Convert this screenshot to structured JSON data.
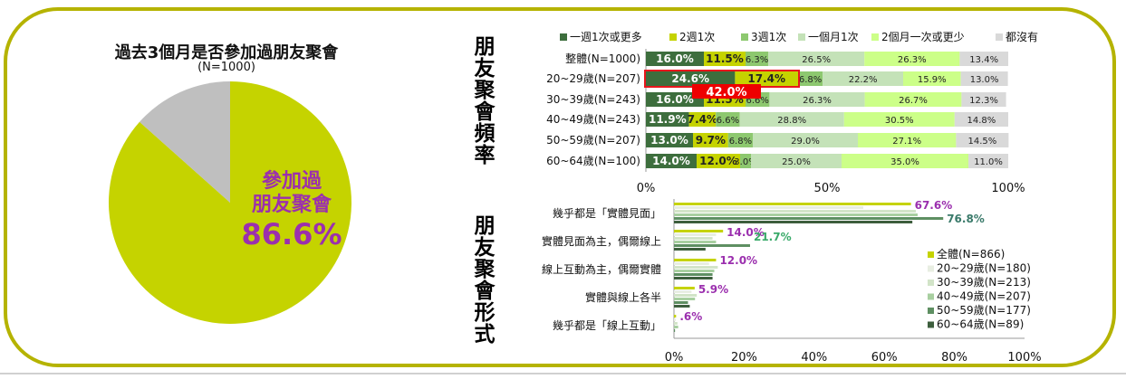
{
  "pie": {
    "title": "過去3個月是否參加過朋友聚會",
    "subtitle": "(N=1000)",
    "label_line1": "參加過",
    "label_line2": "朋友聚會",
    "label_value": "86.6%",
    "colors": {
      "yes": "#c5d300",
      "no": "#bfbfbf"
    }
  },
  "freq_title": "朋友聚會頻率",
  "form_title": "朋友聚會形式",
  "annotation": "42.0%",
  "chart_data": [
    {
      "type": "pie",
      "slices": [
        {
          "name": "參加過朋友聚會",
          "value": 86.6
        },
        {
          "name": "",
          "value": 13.4
        }
      ]
    },
    {
      "type": "bar",
      "orientation": "horizontal",
      "stacked": true,
      "legend": [
        "一週1次或更多",
        "2週1次",
        "3週1次",
        "一個月1次",
        "2個月一次或更少",
        "都沒有"
      ],
      "colors": [
        "#3d6e3d",
        "#c5d300",
        "#8dc86f",
        "#c4e2b8",
        "#ccff88",
        "#d9d9d9"
      ],
      "categories": [
        "整體(N=1000)",
        "20~29歲(N=207)",
        "30~39歲(N=243)",
        "40~49歲(N=243)",
        "50~59歲(N=207)",
        "60~64歲(N=100)"
      ],
      "series": [
        {
          "name": "一週1次或更多",
          "values": [
            16.0,
            24.6,
            16.0,
            11.9,
            13.0,
            14.0
          ]
        },
        {
          "name": "2週1次",
          "values": [
            11.5,
            17.4,
            11.5,
            7.4,
            9.7,
            12.0
          ]
        },
        {
          "name": "3週1次",
          "values": [
            6.3,
            6.8,
            6.6,
            6.6,
            6.8,
            3.0
          ]
        },
        {
          "name": "一個月1次",
          "values": [
            26.5,
            22.2,
            26.3,
            28.8,
            29.0,
            25.0
          ]
        },
        {
          "name": "2個月一次或更少",
          "values": [
            26.3,
            15.9,
            26.7,
            30.5,
            27.1,
            35.0
          ]
        },
        {
          "name": "都沒有",
          "values": [
            13.4,
            13.0,
            12.3,
            14.8,
            14.5,
            11.0
          ]
        }
      ],
      "label_text": [
        [
          "16.0%",
          "11.5%",
          "6.3%",
          "26.5%",
          "26.3%",
          "13.4%"
        ],
        [
          "24.6%",
          "17.4%",
          "6.8%",
          "22.2%",
          "15.9%",
          "13.0%"
        ],
        [
          "16.0%",
          "11.5%",
          "6.6%",
          "26.3%",
          "26.7%",
          "12.3%"
        ],
        [
          "11.9%",
          "7.4%",
          "6.6%",
          "28.8%",
          "30.5%",
          "14.8%"
        ],
        [
          "13.0%",
          "9.7%",
          "6.8%",
          "29.0%",
          "27.1%",
          "14.5%"
        ],
        [
          "14.0%",
          "12.0%",
          "3.0%",
          "25.0%",
          "35.0%",
          "11.0%"
        ]
      ],
      "xticks": [
        "0%",
        "50%",
        "100%"
      ],
      "xlim": [
        0,
        100
      ]
    },
    {
      "type": "bar",
      "orientation": "horizontal",
      "categories": [
        "幾乎都是「實體見面」",
        "實體見面為主，偶爾線上",
        "線上互動為主，偶爾實體",
        "實體與線上各半",
        "幾乎都是「線上互動」"
      ],
      "series": [
        {
          "name": "全體(N=866)",
          "color": "#c5d300",
          "values": [
            67.6,
            14.0,
            12.0,
            5.9,
            0.6
          ]
        },
        {
          "name": "20~29歲(N=180)",
          "color": "#e8eee2",
          "values": [
            54.0,
            12.0,
            10.0,
            5.0,
            0.5
          ]
        },
        {
          "name": "30~39歲(N=213)",
          "color": "#d2e4c8",
          "values": [
            69.0,
            11.0,
            12.5,
            6.5,
            1.0
          ]
        },
        {
          "name": "40~49歲(N=207)",
          "color": "#a8cfa0",
          "values": [
            69.5,
            12.0,
            11.5,
            6.0,
            1.2
          ]
        },
        {
          "name": "50~59歲(N=177)",
          "color": "#5e8f62",
          "values": [
            76.8,
            21.7,
            11.0,
            4.0,
            0.3
          ]
        },
        {
          "name": "60~64歲(N=89)",
          "color": "#3d5e3d",
          "values": [
            68.0,
            9.0,
            11.0,
            4.5,
            0.0
          ]
        }
      ],
      "value_labels": [
        {
          "text": "67.6%",
          "color": "#9b2fae"
        },
        {
          "text": "76.8%",
          "color": "#3a7a6a"
        },
        {
          "text": "14.0%",
          "color": "#9b2fae"
        },
        {
          "text": "21.7%",
          "color": "#3aaa6a"
        },
        {
          "text": "12.0%",
          "color": "#9b2fae"
        },
        {
          "text": "5.9%",
          "color": "#9b2fae"
        },
        {
          "text": ".6%",
          "color": "#9b2fae"
        }
      ],
      "xticks": [
        "0%",
        "20%",
        "40%",
        "60%",
        "80%",
        "100%"
      ],
      "xlim": [
        0,
        100
      ]
    }
  ]
}
